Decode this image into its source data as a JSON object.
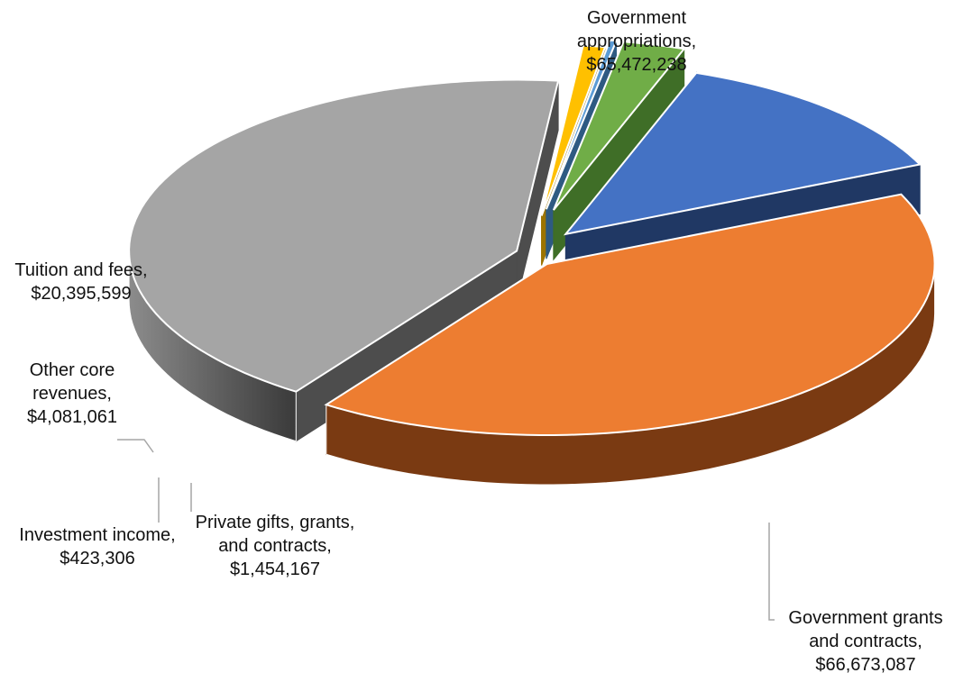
{
  "chart_data": {
    "type": "pie",
    "style": "3d-exploded",
    "categories": [
      "Government appropriations",
      "Government grants and contracts",
      "Private gifts, grants, and contracts",
      "Investment income",
      "Other core revenues",
      "Tuition and fees"
    ],
    "values": [
      65472238,
      66673087,
      1454167,
      423306,
      4081061,
      20395599
    ],
    "labels": [
      [
        "Government",
        "appropriations,",
        "$65,472,238"
      ],
      [
        "Government grants",
        "and contracts,",
        "$66,673,087"
      ],
      [
        "Private gifts, grants,",
        "and contracts,",
        "$1,454,167"
      ],
      [
        "Investment income,",
        "$423,306"
      ],
      [
        "Other core",
        "revenues,",
        "$4,081,061"
      ],
      [
        "Tuition and fees,",
        "$20,395,599"
      ]
    ],
    "colors": [
      "#ed7d31",
      "#a5a5a5",
      "#ffc000",
      "#5b9bd5",
      "#70ad47",
      "#4472c4"
    ],
    "side_colors": [
      "#7a3a12",
      "#4d4d4d",
      "#9c7400",
      "#2e5a82",
      "#3f6e27",
      "#203864"
    ],
    "legend": "none"
  }
}
